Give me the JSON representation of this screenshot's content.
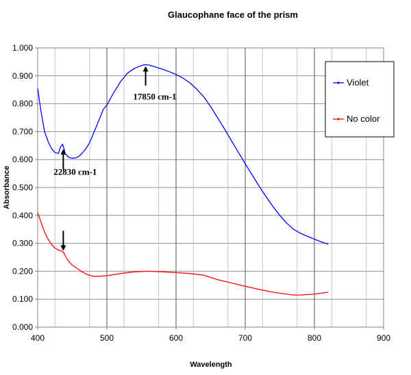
{
  "chart_data": {
    "type": "line",
    "title": "Glaucophane face of the prism",
    "xlabel": "Wavelength",
    "ylabel": "Absorbance",
    "xlim": [
      400,
      900
    ],
    "ylim": [
      0,
      1
    ],
    "x_ticks": [
      "400",
      "500",
      "600",
      "700",
      "800",
      "900"
    ],
    "y_ticks": [
      "0.000",
      "0.100",
      "0.200",
      "0.300",
      "0.400",
      "0.500",
      "0.600",
      "0.700",
      "0.800",
      "0.900",
      "1.000"
    ],
    "grid": true,
    "legend_position": "right",
    "series": [
      {
        "name": "Violet",
        "color": "#0000ff",
        "x": [
          400,
          405,
          410,
          415,
          420,
          425,
          430,
          433,
          436,
          438,
          440,
          445,
          450,
          455,
          460,
          465,
          470,
          475,
          480,
          485,
          490,
          495,
          500,
          510,
          520,
          530,
          540,
          550,
          555,
          560,
          570,
          580,
          590,
          600,
          610,
          620,
          630,
          640,
          650,
          660,
          670,
          680,
          690,
          700,
          710,
          720,
          730,
          740,
          750,
          760,
          770,
          780,
          790,
          800,
          810,
          820
        ],
        "y": [
          0.855,
          0.77,
          0.7,
          0.665,
          0.64,
          0.625,
          0.622,
          0.645,
          0.655,
          0.64,
          0.62,
          0.608,
          0.605,
          0.606,
          0.612,
          0.625,
          0.64,
          0.66,
          0.69,
          0.72,
          0.75,
          0.78,
          0.795,
          0.84,
          0.88,
          0.91,
          0.927,
          0.937,
          0.94,
          0.939,
          0.932,
          0.924,
          0.915,
          0.905,
          0.892,
          0.875,
          0.852,
          0.825,
          0.79,
          0.75,
          0.71,
          0.668,
          0.626,
          0.585,
          0.545,
          0.505,
          0.468,
          0.432,
          0.4,
          0.372,
          0.35,
          0.336,
          0.325,
          0.315,
          0.305,
          0.297
        ]
      },
      {
        "name": "No color",
        "color": "#ff0000",
        "x": [
          400,
          405,
          410,
          415,
          420,
          425,
          430,
          435,
          438,
          442,
          445,
          450,
          460,
          470,
          480,
          490,
          500,
          520,
          540,
          560,
          580,
          600,
          620,
          640,
          660,
          680,
          700,
          720,
          740,
          760,
          770,
          780,
          800,
          820
        ],
        "y": [
          0.41,
          0.375,
          0.34,
          0.315,
          0.296,
          0.283,
          0.276,
          0.272,
          0.265,
          0.245,
          0.235,
          0.222,
          0.205,
          0.19,
          0.182,
          0.182,
          0.184,
          0.192,
          0.198,
          0.2,
          0.198,
          0.195,
          0.192,
          0.186,
          0.17,
          0.158,
          0.146,
          0.135,
          0.125,
          0.118,
          0.115,
          0.115,
          0.118,
          0.125
        ]
      }
    ],
    "annotations": [
      {
        "text": "17850 cm-1",
        "arrow_x": 556,
        "arrow_y_from": 0.865,
        "arrow_y_to": 0.925,
        "label_x": 538,
        "label_y": 0.815
      },
      {
        "text": "22830 cm-1",
        "arrow_x": 437,
        "arrow_y_from": 0.565,
        "arrow_y_to": 0.628,
        "label_x": 423,
        "label_y": 0.545
      },
      {
        "text": "",
        "arrow_x": 437,
        "arrow_y_from": 0.345,
        "arrow_y_to": 0.283
      }
    ]
  }
}
